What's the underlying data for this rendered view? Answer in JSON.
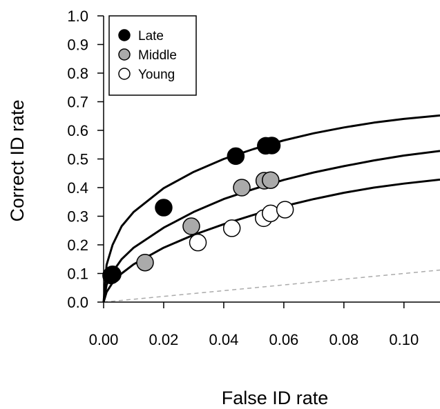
{
  "chart_data": {
    "type": "scatter",
    "xlabel": "False ID rate",
    "ylabel": "Correct ID rate",
    "xlim": [
      0,
      0.112
    ],
    "ylim": [
      0,
      1.0
    ],
    "x_ticks": [
      "0.00",
      "0.02",
      "0.04",
      "0.06",
      "0.08",
      "0.10"
    ],
    "y_ticks": [
      "0.0",
      "0.1",
      "0.2",
      "0.3",
      "0.4",
      "0.5",
      "0.6",
      "0.7",
      "0.8",
      "0.9",
      "1.0"
    ],
    "grid": false,
    "legend_position": "top-left",
    "series": [
      {
        "name": "Late",
        "color": "#000000",
        "points": [
          [
            0.003,
            0.097
          ],
          [
            0.0025,
            0.093
          ],
          [
            0.02,
            0.33
          ],
          [
            0.044,
            0.51
          ],
          [
            0.054,
            0.546
          ],
          [
            0.056,
            0.547
          ]
        ],
        "curve": [
          [
            0.0,
            0.0
          ],
          [
            0.001,
            0.13
          ],
          [
            0.003,
            0.2
          ],
          [
            0.006,
            0.265
          ],
          [
            0.01,
            0.315
          ],
          [
            0.02,
            0.398
          ],
          [
            0.03,
            0.455
          ],
          [
            0.04,
            0.5
          ],
          [
            0.05,
            0.535
          ],
          [
            0.06,
            0.565
          ],
          [
            0.07,
            0.59
          ],
          [
            0.08,
            0.61
          ],
          [
            0.09,
            0.627
          ],
          [
            0.1,
            0.64
          ],
          [
            0.112,
            0.652
          ]
        ]
      },
      {
        "name": "Middle",
        "color": "#aaaaaa",
        "points": [
          [
            0.0138,
            0.138
          ],
          [
            0.0292,
            0.265
          ],
          [
            0.046,
            0.4
          ],
          [
            0.0535,
            0.424
          ],
          [
            0.0556,
            0.426
          ]
        ],
        "curve": [
          [
            0.0,
            0.0
          ],
          [
            0.001,
            0.06
          ],
          [
            0.003,
            0.105
          ],
          [
            0.006,
            0.15
          ],
          [
            0.01,
            0.19
          ],
          [
            0.02,
            0.26
          ],
          [
            0.03,
            0.315
          ],
          [
            0.04,
            0.36
          ],
          [
            0.05,
            0.395
          ],
          [
            0.06,
            0.427
          ],
          [
            0.07,
            0.453
          ],
          [
            0.08,
            0.475
          ],
          [
            0.09,
            0.495
          ],
          [
            0.1,
            0.512
          ],
          [
            0.112,
            0.528
          ]
        ]
      },
      {
        "name": "Young",
        "color": "#ffffff",
        "points": [
          [
            0.0314,
            0.208
          ],
          [
            0.0427,
            0.258
          ],
          [
            0.0533,
            0.293
          ],
          [
            0.0556,
            0.31
          ],
          [
            0.0604,
            0.323
          ]
        ],
        "curve": [
          [
            0.0,
            0.0
          ],
          [
            0.001,
            0.035
          ],
          [
            0.003,
            0.068
          ],
          [
            0.006,
            0.1
          ],
          [
            0.01,
            0.132
          ],
          [
            0.02,
            0.19
          ],
          [
            0.03,
            0.235
          ],
          [
            0.04,
            0.272
          ],
          [
            0.05,
            0.305
          ],
          [
            0.06,
            0.335
          ],
          [
            0.07,
            0.36
          ],
          [
            0.08,
            0.382
          ],
          [
            0.09,
            0.4
          ],
          [
            0.1,
            0.414
          ],
          [
            0.112,
            0.428
          ]
        ]
      }
    ],
    "reference_line": {
      "style": "dashed",
      "color": "#aaaaaa",
      "points": [
        [
          0,
          0
        ],
        [
          0.112,
          0.112
        ]
      ]
    }
  }
}
